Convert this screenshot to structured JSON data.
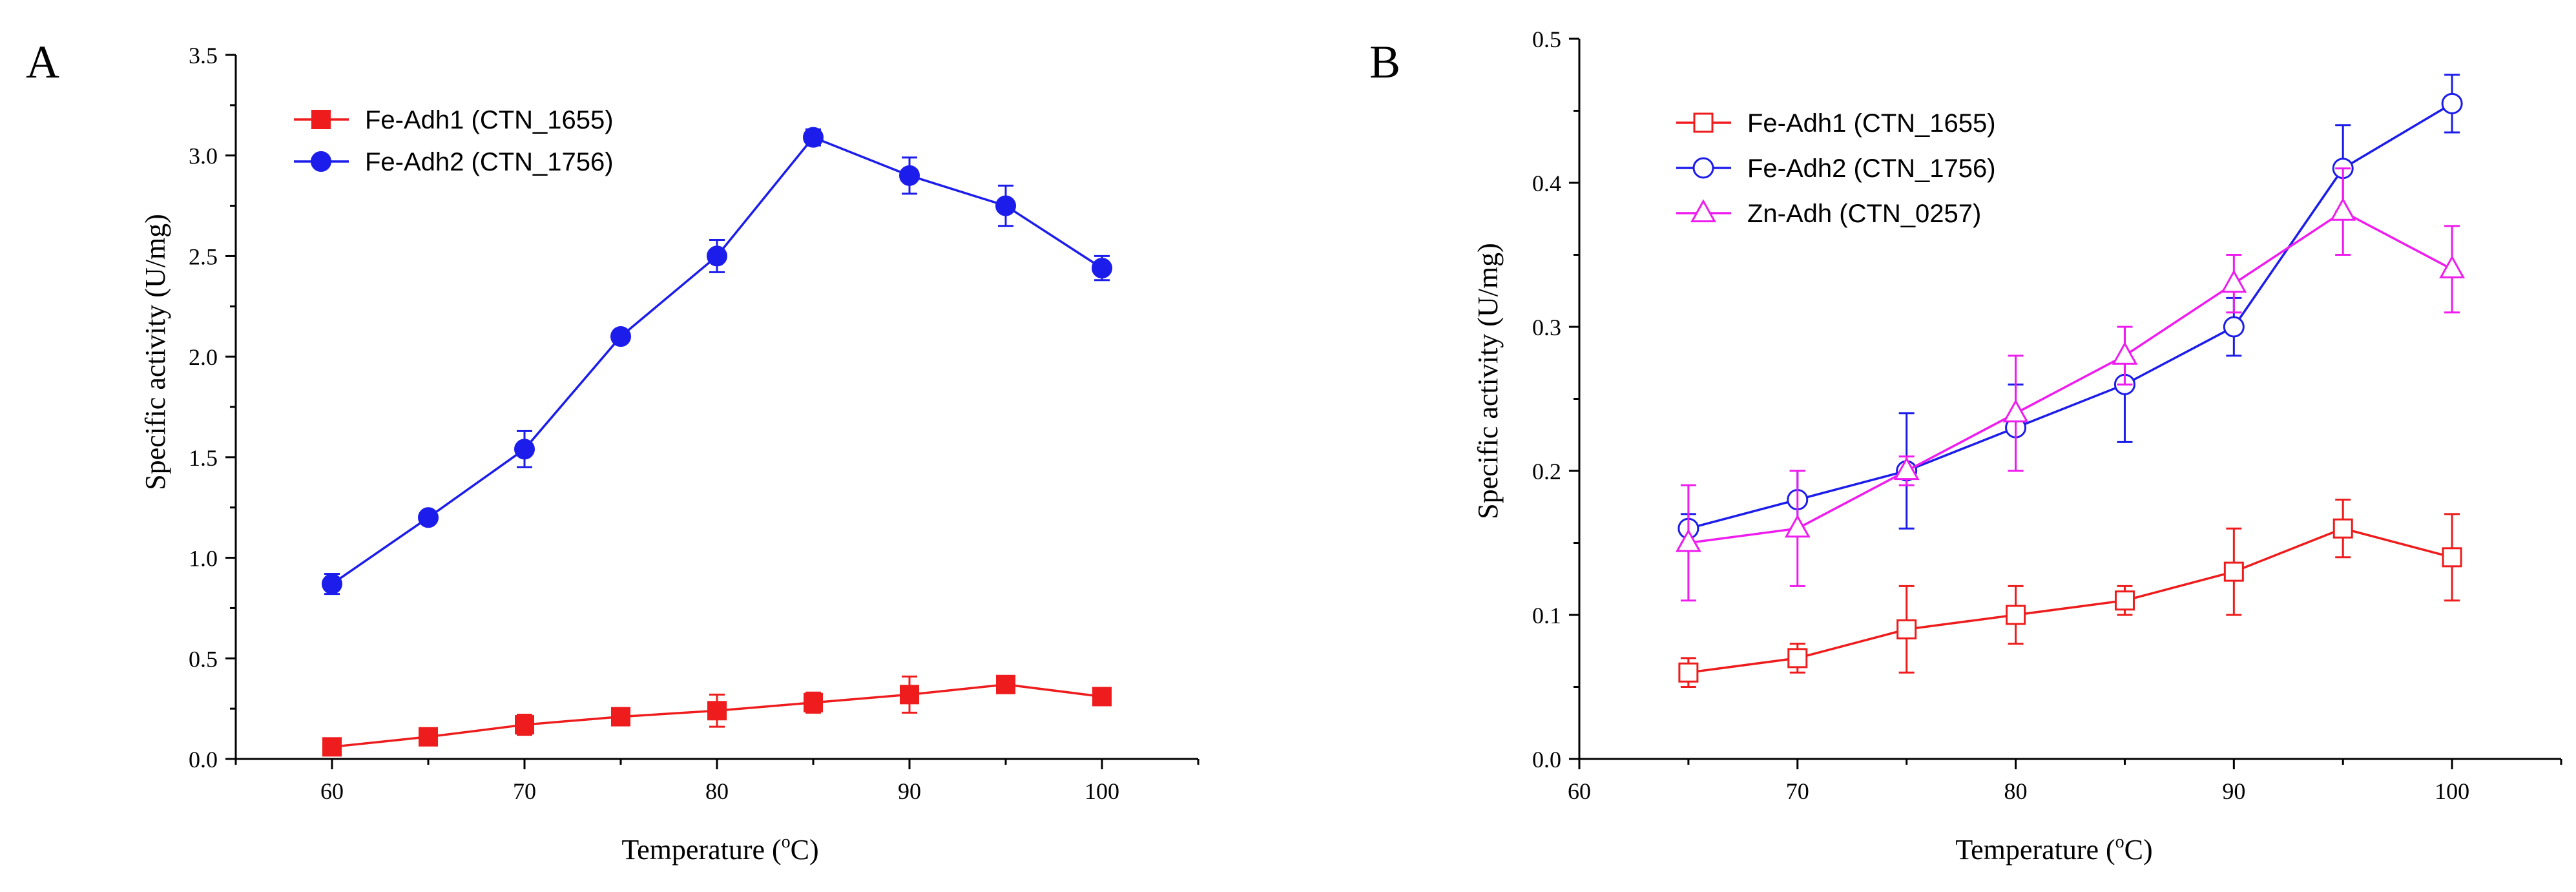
{
  "chart_data": [
    {
      "type": "line",
      "panel_label": "A",
      "xlabel": "Temperature (",
      "xlabel_super": "o",
      "xlabel_suffix": "C)",
      "ylabel": "Specific activity (U/mg)",
      "xlim": [
        55,
        105
      ],
      "ylim": [
        0,
        3.5
      ],
      "xticks": [
        60,
        70,
        80,
        90,
        100
      ],
      "yticks": [
        0.0,
        0.5,
        1.0,
        1.5,
        2.0,
        2.5,
        3.0,
        3.5
      ],
      "ytick_labels": [
        "0.0",
        "0.5",
        "1.0",
        "1.5",
        "2.0",
        "2.5",
        "3.0",
        "3.5"
      ],
      "legend_position": "top-left",
      "series": [
        {
          "name": "Fe-Adh1 (CTN_1655)",
          "color": "#ee1c1c",
          "marker": "filled-square",
          "x": [
            60,
            65,
            70,
            75,
            80,
            85,
            90,
            95,
            100
          ],
          "y": [
            0.06,
            0.11,
            0.17,
            0.21,
            0.24,
            0.28,
            0.32,
            0.37,
            0.31
          ],
          "err": [
            0.02,
            0.02,
            0.05,
            0.03,
            0.08,
            0.05,
            0.09,
            0.02,
            0.03
          ]
        },
        {
          "name": "Fe-Adh2 (CTN_1756)",
          "color": "#1c1ceb",
          "marker": "filled-circle",
          "x": [
            60,
            65,
            70,
            75,
            80,
            85,
            90,
            95,
            100
          ],
          "y": [
            0.87,
            1.2,
            1.54,
            2.1,
            2.5,
            3.09,
            2.9,
            2.75,
            2.44
          ],
          "err": [
            0.05,
            0.02,
            0.09,
            0.03,
            0.08,
            0.04,
            0.09,
            0.1,
            0.06
          ]
        }
      ]
    },
    {
      "type": "line",
      "panel_label": "B",
      "xlabel": "Temperature (",
      "xlabel_super": "o",
      "xlabel_suffix": "C)",
      "ylabel": "Specific activity (U/mg)",
      "xlim": [
        60,
        105
      ],
      "ylim": [
        0,
        0.5
      ],
      "xticks": [
        60,
        70,
        80,
        90,
        100
      ],
      "yticks": [
        0.0,
        0.1,
        0.2,
        0.3,
        0.4,
        0.5
      ],
      "ytick_labels": [
        "0.0",
        "0.1",
        "0.2",
        "0.3",
        "0.4",
        "0.5"
      ],
      "legend_position": "top-left",
      "series": [
        {
          "name": "Fe-Adh1 (CTN_1655)",
          "color": "#ee1c1c",
          "marker": "open-square",
          "x": [
            65,
            70,
            75,
            80,
            85,
            90,
            95,
            100
          ],
          "y": [
            0.06,
            0.07,
            0.09,
            0.1,
            0.11,
            0.13,
            0.16,
            0.14
          ],
          "err": [
            0.01,
            0.01,
            0.03,
            0.02,
            0.01,
            0.03,
            0.02,
            0.03
          ]
        },
        {
          "name": "Fe-Adh2 (CTN_1756)",
          "color": "#1c1ceb",
          "marker": "open-circle",
          "x": [
            65,
            70,
            75,
            80,
            85,
            90,
            95,
            100
          ],
          "y": [
            0.16,
            0.18,
            0.2,
            0.23,
            0.26,
            0.3,
            0.41,
            0.455
          ],
          "err": [
            0.01,
            0.02,
            0.04,
            0.03,
            0.04,
            0.02,
            0.03,
            0.02
          ]
        },
        {
          "name": "Zn-Adh (CTN_0257)",
          "color": "#ee1cee",
          "marker": "open-triangle",
          "x": [
            65,
            70,
            75,
            80,
            85,
            90,
            95,
            100
          ],
          "y": [
            0.15,
            0.16,
            0.2,
            0.24,
            0.28,
            0.33,
            0.38,
            0.34
          ],
          "err": [
            0.04,
            0.04,
            0.01,
            0.04,
            0.02,
            0.02,
            0.03,
            0.03
          ]
        }
      ]
    }
  ]
}
